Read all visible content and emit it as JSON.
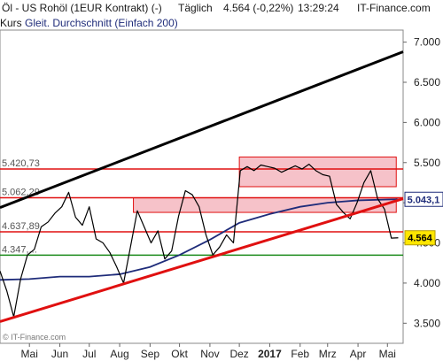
{
  "header": {
    "instrument": "Öl - US Rohöl (1EUR Kontrakt) (-)",
    "interval": "Täglich",
    "quote": "4.564 (-0,22%)",
    "time": "13:29:24",
    "brand": "IT-Finance.com"
  },
  "legend": {
    "series_label": "Kurs",
    "ma_label": "Gleit. Durchschnitt (Einfach 200)"
  },
  "watermark": "© IT-Finance.com",
  "colors": {
    "price": "#000000",
    "ma": "#1f2c7a",
    "resistance": "#e01010",
    "support_green": "#1a8a1a",
    "trend_up": "#e01010",
    "trend_upper": "#000000",
    "zone_fill": "#f4b7c0",
    "price_tag": "#ffe600",
    "ma_tag": "#ffffff"
  },
  "chart_data": {
    "type": "line",
    "y_ticks": [
      "3.500",
      "4.000",
      "4.500",
      "5.000",
      "5.500",
      "6.000",
      "6.500",
      "7.000"
    ],
    "y_tick_values": [
      3500,
      4000,
      4500,
      5000,
      5500,
      6000,
      6500,
      7000
    ],
    "ylim": [
      3250,
      7150
    ],
    "x_ticks": [
      "Mai",
      "Jun",
      "Jul",
      "Aug",
      "Sep",
      "Okt",
      "Nov",
      "Dez",
      "2017",
      "Feb",
      "Mrz",
      "Apr",
      "Mai"
    ],
    "x_tick_dates": [
      "2016-05-01",
      "2016-06-01",
      "2016-07-01",
      "2016-08-01",
      "2016-09-01",
      "2016-10-01",
      "2016-11-01",
      "2016-12-01",
      "2017-01-01",
      "2017-02-01",
      "2017-03-01",
      "2017-04-01",
      "2017-05-01"
    ],
    "xlim": [
      "2016-04-01",
      "2017-05-17"
    ],
    "levels": [
      {
        "label": "5.420,73",
        "value": 5420.73
      },
      {
        "label": "5.062,29",
        "value": 5062.29
      },
      {
        "label": "4.637,89",
        "value": 4637.89
      },
      {
        "label": "4.347,...",
        "value": 4347
      }
    ],
    "resistance_zones": [
      {
        "from": "2016-12-01",
        "to": "2017-05-10",
        "low": 5200,
        "high": 5570
      },
      {
        "from": "2016-08-15",
        "to": "2017-05-10",
        "low": 4880,
        "high": 5062.29
      }
    ],
    "trendlines": [
      {
        "name": "lower",
        "points": [
          [
            "2016-04-01",
            3520
          ],
          [
            "2017-05-17",
            5050
          ]
        ]
      },
      {
        "name": "upper",
        "points": [
          [
            "2016-04-01",
            4940
          ],
          [
            "2017-05-17",
            6880
          ]
        ]
      }
    ],
    "price_tag": "4.564",
    "ma_tag": "5.043,1",
    "series": [
      {
        "name": "Kurs",
        "x": [
          "2016-04-01",
          "2016-04-08",
          "2016-04-15",
          "2016-04-22",
          "2016-04-29",
          "2016-05-06",
          "2016-05-13",
          "2016-05-20",
          "2016-05-27",
          "2016-06-03",
          "2016-06-10",
          "2016-06-17",
          "2016-06-24",
          "2016-07-01",
          "2016-07-08",
          "2016-07-15",
          "2016-07-22",
          "2016-07-29",
          "2016-08-05",
          "2016-08-12",
          "2016-08-19",
          "2016-08-26",
          "2016-09-02",
          "2016-09-09",
          "2016-09-16",
          "2016-09-23",
          "2016-09-30",
          "2016-10-07",
          "2016-10-14",
          "2016-10-21",
          "2016-10-28",
          "2016-11-04",
          "2016-11-11",
          "2016-11-18",
          "2016-11-25",
          "2016-12-02",
          "2016-12-09",
          "2016-12-16",
          "2016-12-23",
          "2016-12-30",
          "2017-01-06",
          "2017-01-13",
          "2017-01-20",
          "2017-01-27",
          "2017-02-03",
          "2017-02-10",
          "2017-02-17",
          "2017-02-24",
          "2017-03-03",
          "2017-03-10",
          "2017-03-17",
          "2017-03-24",
          "2017-03-31",
          "2017-04-07",
          "2017-04-14",
          "2017-04-21",
          "2017-04-28",
          "2017-05-05",
          "2017-05-12"
        ],
        "values": [
          4150,
          3900,
          3580,
          4050,
          4350,
          4420,
          4700,
          4760,
          4870,
          4950,
          5130,
          4820,
          4720,
          4950,
          4550,
          4500,
          4380,
          4200,
          4000,
          4450,
          4900,
          4700,
          4500,
          4650,
          4300,
          4400,
          4830,
          5150,
          5100,
          4950,
          4600,
          4350,
          4450,
          4600,
          4500,
          5400,
          5450,
          5400,
          5470,
          5450,
          5430,
          5380,
          5420,
          5460,
          5420,
          5480,
          5400,
          5350,
          5330,
          4980,
          4880,
          4800,
          5000,
          5250,
          5400,
          5050,
          4920,
          4560,
          4564
        ]
      },
      {
        "name": "Gleit. Durchschnitt (Einfach 200)",
        "x": [
          "2016-04-01",
          "2016-05-01",
          "2016-06-01",
          "2016-07-01",
          "2016-08-01",
          "2016-09-01",
          "2016-10-01",
          "2016-11-01",
          "2016-12-01",
          "2017-01-01",
          "2017-02-01",
          "2017-03-01",
          "2017-04-01",
          "2017-05-01",
          "2017-05-12"
        ],
        "values": [
          4040,
          4050,
          4080,
          4080,
          4110,
          4200,
          4350,
          4540,
          4750,
          4860,
          4950,
          5000,
          5030,
          5040,
          5043
        ]
      }
    ]
  }
}
